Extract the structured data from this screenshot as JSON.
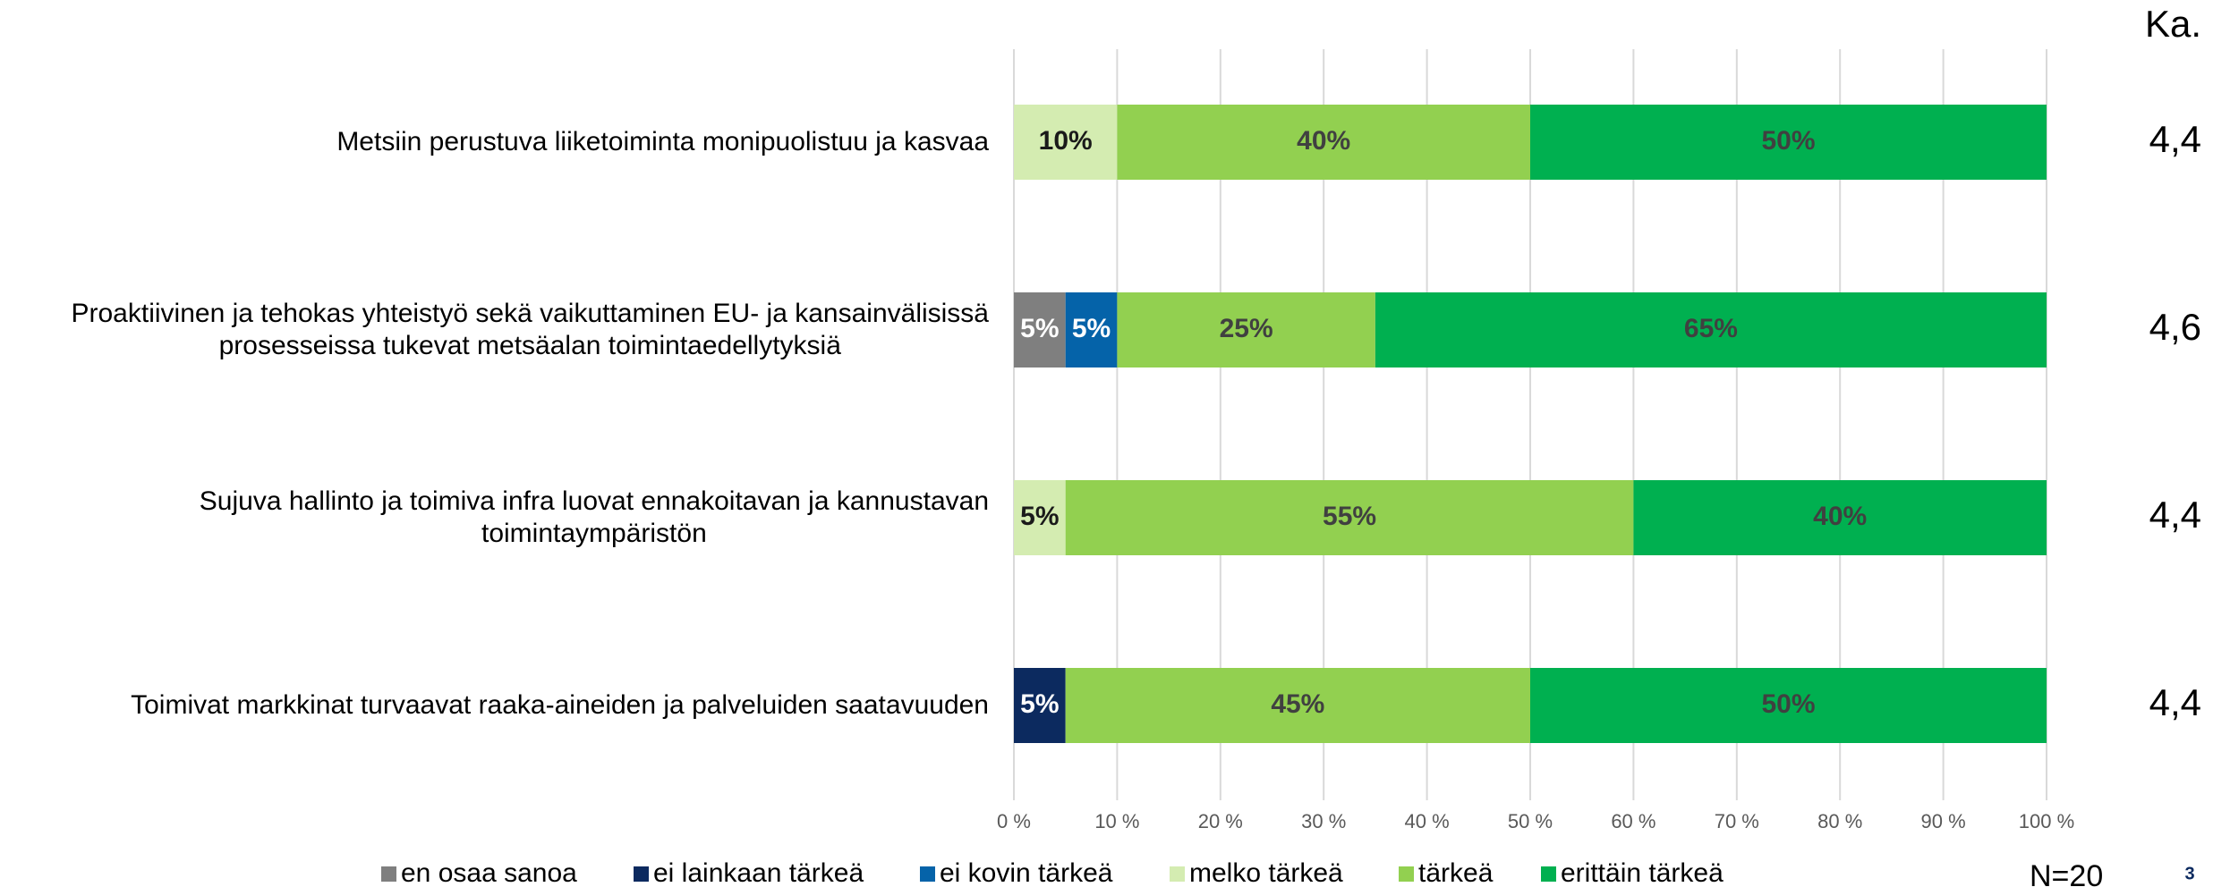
{
  "chart_data": {
    "type": "stacked-barh",
    "categories": [
      "Metsiin perustuva liiketoiminta monipuolistuu ja kasvaa",
      "Proaktiivinen ja tehokas yhteistyö sekä vaikuttaminen EU- ja kansainvälisissä\nprosesseissa tukevat metsäalan toimintaedellytyksiä",
      "Sujuva hallinto ja toimiva infra luovat ennakoitavan ja kannustavan\ntoimintaympäristön",
      "Toimivat markkinat turvaavat raaka-aineiden ja palveluiden saatavuuden"
    ],
    "series": [
      {
        "name": "en osaa sanoa",
        "color": "#7f7f7f",
        "label_color": "#ffffff",
        "values": [
          null,
          5,
          null,
          null
        ],
        "value_labels": [
          null,
          "5%",
          null,
          null
        ]
      },
      {
        "name": "ei lainkaan tärkeä",
        "color": "#0c2a5f",
        "label_color": "#ffffff",
        "values": [
          null,
          null,
          null,
          5
        ],
        "value_labels": [
          null,
          null,
          null,
          "5%"
        ]
      },
      {
        "name": "ei kovin tärkeä",
        "color": "#0563a9",
        "label_color": "#ffffff",
        "values": [
          null,
          5,
          null,
          null
        ],
        "value_labels": [
          null,
          "5%",
          null,
          null
        ]
      },
      {
        "name": "melko tärkeä",
        "color": "#d4ecb1",
        "label_color": "#1a1a1a",
        "values": [
          10,
          null,
          5,
          null
        ],
        "value_labels": [
          "10%",
          null,
          "5%",
          null
        ]
      },
      {
        "name": "tärkeä",
        "color": "#92d050",
        "label_color": "#404040",
        "values": [
          40,
          25,
          55,
          45
        ],
        "value_labels": [
          "40%",
          "25%",
          "55%",
          "45%"
        ]
      },
      {
        "name": "erittäin tärkeä",
        "color": "#00b050",
        "label_color": "#404040",
        "values": [
          50,
          65,
          40,
          50
        ],
        "value_labels": [
          "50%",
          "65%",
          "40%",
          "50%"
        ]
      }
    ],
    "xlim": [
      0,
      100
    ],
    "xticks": [
      {
        "value": 0,
        "label": "0 %"
      },
      {
        "value": 10,
        "label": "10 %"
      },
      {
        "value": 20,
        "label": "20 %"
      },
      {
        "value": 30,
        "label": "30 %"
      },
      {
        "value": 40,
        "label": "40 %"
      },
      {
        "value": 50,
        "label": "50 %"
      },
      {
        "value": 60,
        "label": "60 %"
      },
      {
        "value": 70,
        "label": "70 %"
      },
      {
        "value": 80,
        "label": "80 %"
      },
      {
        "value": 90,
        "label": "90 %"
      },
      {
        "value": 100,
        "label": "100 %"
      }
    ],
    "grid": true,
    "legend": "bottom",
    "average_header": "Ka.",
    "averages": [
      "4,4",
      "4,6",
      "4,4",
      "4,4"
    ],
    "note": "N=20",
    "page_number": "3"
  }
}
